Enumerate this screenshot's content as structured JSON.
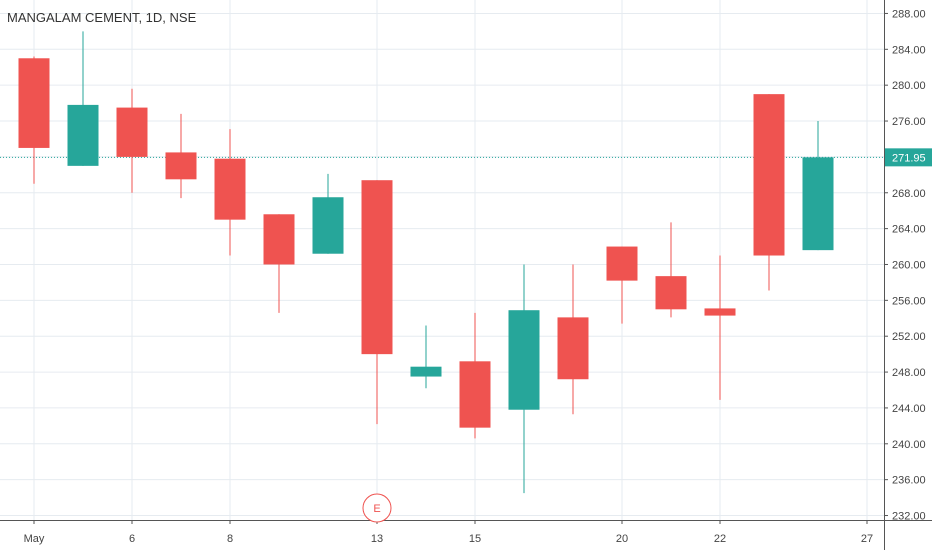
{
  "chart_data": {
    "type": "candlestick",
    "title": "MANGALAM CEMENT, 1D, NSE",
    "last_price": 271.95,
    "last_price_label": "271.95",
    "ylim": [
      231.5,
      289.5
    ],
    "y_ticks": [
      232,
      236,
      240,
      244,
      248,
      252,
      256,
      260,
      264,
      268,
      272,
      276,
      280,
      284,
      288
    ],
    "y_tick_labels": [
      "232.00",
      "236.00",
      "240.00",
      "244.00",
      "248.00",
      "252.00",
      "256.00",
      "260.00",
      "264.00",
      "268.00",
      "276.00",
      "280.00",
      "284.00",
      "288.00"
    ],
    "x_tick_labels": [
      {
        "label": "May",
        "index": 0
      },
      {
        "label": "6",
        "index": 2
      },
      {
        "label": "8",
        "index": 4
      },
      {
        "label": "13",
        "index": 7
      },
      {
        "label": "15",
        "index": 9
      },
      {
        "label": "20",
        "index": 12
      },
      {
        "label": "22",
        "index": 14
      },
      {
        "label": "27",
        "index": 17
      }
    ],
    "earnings_marker": {
      "label": "E",
      "index": 7
    },
    "candles": [
      {
        "open": 283.0,
        "high": 283.2,
        "low": 269.0,
        "close": 273.0
      },
      {
        "open": 271.0,
        "high": 286.0,
        "low": 271.0,
        "close": 277.8
      },
      {
        "open": 277.5,
        "high": 279.6,
        "low": 268.0,
        "close": 272.0
      },
      {
        "open": 272.5,
        "high": 276.8,
        "low": 267.4,
        "close": 269.5
      },
      {
        "open": 271.8,
        "high": 275.1,
        "low": 261.0,
        "close": 265.0
      },
      {
        "open": 265.6,
        "high": 265.6,
        "low": 254.6,
        "close": 260.0
      },
      {
        "open": 261.2,
        "high": 270.1,
        "low": 261.2,
        "close": 267.5
      },
      {
        "open": 269.4,
        "high": 269.4,
        "low": 242.2,
        "close": 250.0
      },
      {
        "open": 247.5,
        "high": 253.2,
        "low": 246.2,
        "close": 248.6
      },
      {
        "open": 249.2,
        "high": 254.6,
        "low": 240.6,
        "close": 241.8
      },
      {
        "open": 243.8,
        "high": 260.0,
        "low": 234.5,
        "close": 254.9
      },
      {
        "open": 254.1,
        "high": 260.0,
        "low": 243.3,
        "close": 247.2
      },
      {
        "open": 262.0,
        "high": 262.0,
        "low": 253.4,
        "close": 258.2
      },
      {
        "open": 258.7,
        "high": 264.7,
        "low": 254.1,
        "close": 255.0
      },
      {
        "open": 255.1,
        "high": 261.0,
        "low": 244.9,
        "close": 254.3
      },
      {
        "open": 279.0,
        "high": 279.0,
        "low": 257.1,
        "close": 261.0
      },
      {
        "open": 261.6,
        "high": 276.0,
        "low": 261.6,
        "close": 271.95
      }
    ],
    "colors": {
      "up": "#26a69a",
      "down": "#ef5350",
      "grid": "#e6ebf0",
      "price_line": "#26a69a",
      "text": "#333333"
    }
  }
}
